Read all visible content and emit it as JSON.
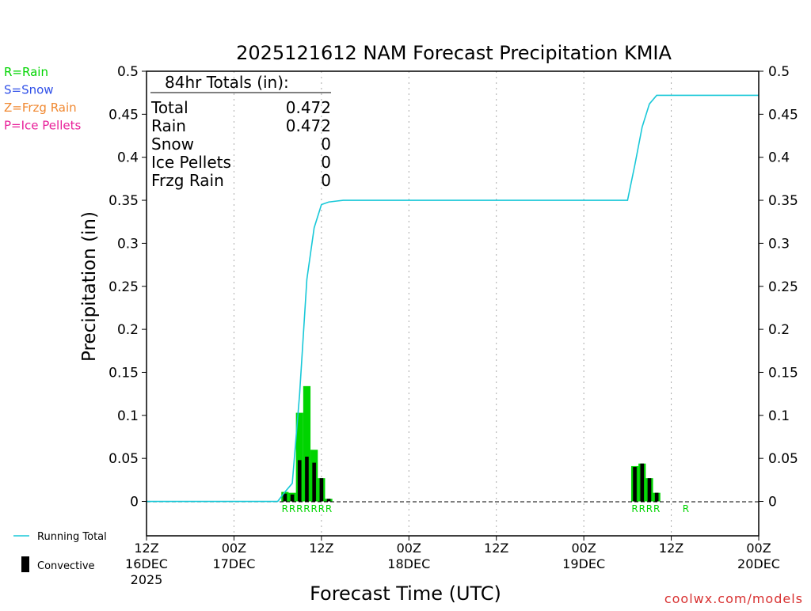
{
  "chart_data": {
    "type": "bar",
    "title": "2025121612 NAM Forecast Precipitation KMIA",
    "xlabel": "Forecast Time (UTC)",
    "ylabel": "Precipitation (in)",
    "ylim": [
      -0.04,
      0.5
    ],
    "xlim_hours": [
      0,
      84
    ],
    "y_ticks": [
      "0",
      "0.05",
      "0.1",
      "0.15",
      "0.2",
      "0.25",
      "0.3",
      "0.35",
      "0.4",
      "0.45",
      "0.5"
    ],
    "x_ticks": [
      {
        "hour": 0,
        "l1": "12Z",
        "l2": "16DEC",
        "l3": "2025"
      },
      {
        "hour": 12,
        "l1": "00Z",
        "l2": "17DEC",
        "l3": ""
      },
      {
        "hour": 24,
        "l1": "12Z",
        "l2": "",
        "l3": ""
      },
      {
        "hour": 36,
        "l1": "00Z",
        "l2": "18DEC",
        "l3": ""
      },
      {
        "hour": 48,
        "l1": "12Z",
        "l2": "",
        "l3": ""
      },
      {
        "hour": 60,
        "l1": "00Z",
        "l2": "19DEC",
        "l3": ""
      },
      {
        "hour": 72,
        "l1": "12Z",
        "l2": "",
        "l3": ""
      },
      {
        "hour": 84,
        "l1": "00Z",
        "l2": "20DEC",
        "l3": ""
      }
    ],
    "grid_hours": [
      12,
      24,
      36,
      48,
      60,
      72
    ],
    "series": [
      {
        "name": "Rain (hourly)",
        "color": "#00d400",
        "hours": [
          19,
          20,
          21,
          22,
          23,
          24,
          25,
          26,
          67,
          68,
          69,
          70
        ],
        "values": [
          0.011,
          0.01,
          0.103,
          0.134,
          0.06,
          0.027,
          0.003,
          0.0,
          0.041,
          0.044,
          0.027,
          0.01
        ]
      },
      {
        "name": "Convective",
        "color": "#000000",
        "hours": [
          19,
          20,
          21,
          22,
          23,
          24,
          25,
          67,
          68,
          69,
          70
        ],
        "values": [
          0.009,
          0.008,
          0.048,
          0.052,
          0.045,
          0.027,
          0.003,
          0.04,
          0.044,
          0.027,
          0.01
        ]
      },
      {
        "name": "Running Total",
        "color": "#18c8d8",
        "hours": [
          0,
          18,
          19,
          20,
          21,
          22,
          23,
          24,
          25,
          26,
          27,
          66,
          67,
          68,
          69,
          70,
          84
        ],
        "values": [
          0,
          0,
          0.011,
          0.021,
          0.124,
          0.258,
          0.318,
          0.345,
          0.348,
          0.349,
          0.35,
          0.35,
          0.391,
          0.435,
          0.462,
          0.472,
          0.472
        ]
      }
    ],
    "ptype_labels": [
      {
        "hour": 19,
        "text": "R"
      },
      {
        "hour": 20,
        "text": "R"
      },
      {
        "hour": 21,
        "text": "R"
      },
      {
        "hour": 22,
        "text": "R"
      },
      {
        "hour": 23,
        "text": "R"
      },
      {
        "hour": 24,
        "text": "R"
      },
      {
        "hour": 25,
        "text": "R"
      },
      {
        "hour": 67,
        "text": "R"
      },
      {
        "hour": 68,
        "text": "R"
      },
      {
        "hour": 69,
        "text": "R"
      },
      {
        "hour": 70,
        "text": "R"
      },
      {
        "hour": 74,
        "text": "R"
      }
    ],
    "totals": {
      "header": "84hr Totals (in):",
      "rows": [
        {
          "label": "Total",
          "value": "0.472"
        },
        {
          "label": "Rain",
          "value": "0.472"
        },
        {
          "label": "Snow",
          "value": "0"
        },
        {
          "label": "Ice Pellets",
          "value": "0"
        },
        {
          "label": "Frzg Rain",
          "value": "0"
        }
      ]
    },
    "ptype_key": [
      {
        "text": "R=Rain",
        "color": "#00d400"
      },
      {
        "text": "S=Snow",
        "color": "#3050e8"
      },
      {
        "text": "Z=Frzg Rain",
        "color": "#f08830"
      },
      {
        "text": "P=Ice Pellets",
        "color": "#e8209a"
      }
    ],
    "legend": [
      {
        "text": "Running Total",
        "color": "#18c8d8",
        "symbol": "line"
      },
      {
        "text": "Convective",
        "color": "#000000",
        "symbol": "bar"
      }
    ]
  },
  "footer": {
    "credit": "coolwx.com/models",
    "credit_color": "#d83030"
  }
}
